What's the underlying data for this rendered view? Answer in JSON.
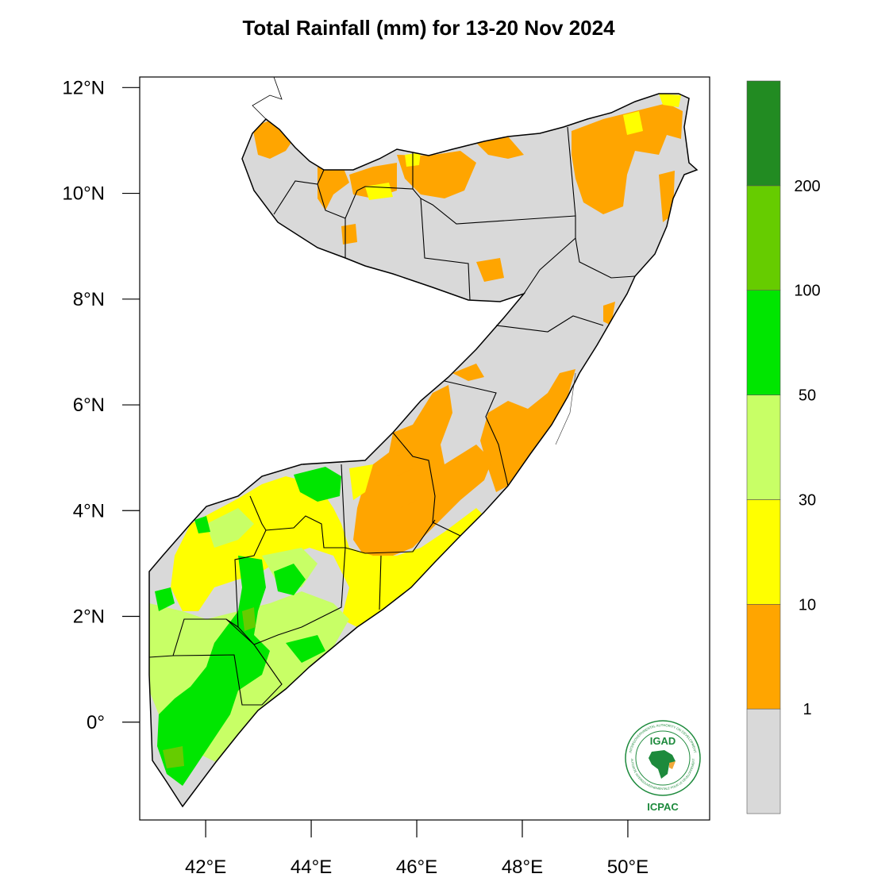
{
  "title": "Total Rainfall (mm) for 13-20 Nov 2024",
  "axes": {
    "lat_ticks": [
      {
        "value": 12,
        "label": "12°N"
      },
      {
        "value": 10,
        "label": "10°N"
      },
      {
        "value": 8,
        "label": "8°N"
      },
      {
        "value": 6,
        "label": "6°N"
      },
      {
        "value": 4,
        "label": "4°N"
      },
      {
        "value": 2,
        "label": "2°N"
      },
      {
        "value": 0,
        "label": "0°"
      }
    ],
    "lon_ticks": [
      {
        "value": 42,
        "label": "42°E"
      },
      {
        "value": 44,
        "label": "44°E"
      },
      {
        "value": 46,
        "label": "46°E"
      },
      {
        "value": 48,
        "label": "48°E"
      },
      {
        "value": 50,
        "label": "50°E"
      }
    ],
    "lon_range": [
      40.75,
      51.55
    ],
    "lat_range": [
      -1.85,
      12.2
    ]
  },
  "colorbar": {
    "classes": [
      {
        "range": "<1",
        "color": "#d9d9d9"
      },
      {
        "range": "1-10",
        "color": "#ffa500"
      },
      {
        "range": "10-30",
        "color": "#ffff00"
      },
      {
        "range": "30-50",
        "color": "#c8ff66"
      },
      {
        "range": "50-100",
        "color": "#00e600"
      },
      {
        "range": "100-200",
        "color": "#66cc00"
      },
      {
        "range": ">200",
        "color": "#228b22"
      }
    ],
    "labels": [
      "1",
      "10",
      "30",
      "50",
      "100",
      "200"
    ]
  },
  "logo": {
    "top_text": "IGAD",
    "bottom_text": "ICPAC",
    "ring_text_top": "INTERGOVERNMENTAL AUTHORITY ON DEVELOPMENT",
    "ring_text_bottom": "AUTORITÉ INTERGOUVERNEMENTALE POUR LE DÉVELOPPEMENT"
  }
}
